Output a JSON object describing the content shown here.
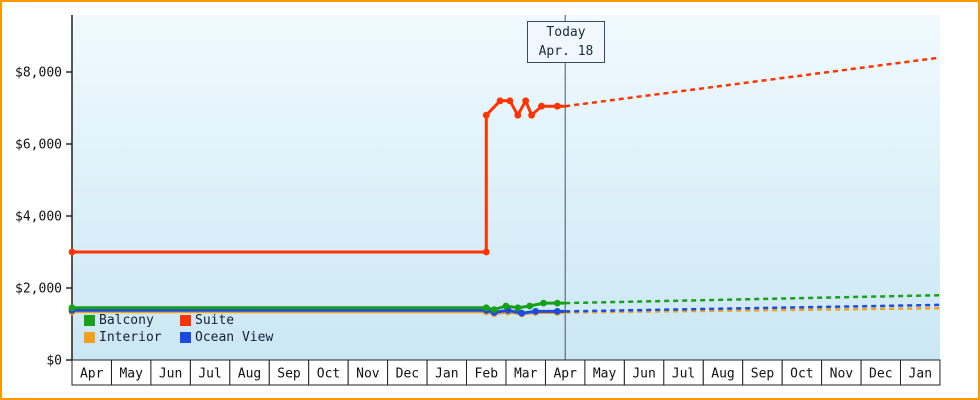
{
  "chart_data": {
    "type": "line",
    "today": {
      "x": 12.5,
      "label_line1": "Today",
      "label_line2": "Apr. 18"
    },
    "y_axis": {
      "ticks": [
        {
          "label": "$0",
          "value": 0
        },
        {
          "label": "$2,000",
          "value": 2000
        },
        {
          "label": "$4,000",
          "value": 4000
        },
        {
          "label": "$6,000",
          "value": 6000
        },
        {
          "label": "$8,000",
          "value": 8000
        }
      ],
      "range": [
        0,
        9600
      ]
    },
    "x_axis": {
      "months": [
        "Apr",
        "May",
        "Jun",
        "Jul",
        "Aug",
        "Sep",
        "Oct",
        "Nov",
        "Dec",
        "Jan",
        "Feb",
        "Mar",
        "Apr",
        "May",
        "Jun",
        "Jul",
        "Aug",
        "Sep",
        "Oct",
        "Nov",
        "Dec",
        "Jan"
      ]
    },
    "legend": [
      {
        "name": "Balcony",
        "color": "#18a018"
      },
      {
        "name": "Suite",
        "color": "#ff3300"
      },
      {
        "name": "Interior",
        "color": "#f0a11e"
      },
      {
        "name": "Ocean View",
        "color": "#1c4be0"
      }
    ],
    "colors": {
      "frame_border": "#ff9900",
      "plot_top": "#f0fafe",
      "plot_bottom": "#cbe7f4",
      "today_line": "#445566",
      "axis": "#222222"
    },
    "series": [
      {
        "name": "Interior",
        "history": [
          [
            0,
            1340
          ],
          [
            10.5,
            1340
          ],
          [
            10.7,
            1290
          ],
          [
            11.05,
            1330
          ],
          [
            11.4,
            1280
          ],
          [
            11.75,
            1320
          ],
          [
            12.5,
            1320
          ]
        ],
        "markers": [
          [
            0,
            1340
          ],
          [
            10.5,
            1340
          ],
          [
            10.7,
            1290
          ],
          [
            11.05,
            1330
          ],
          [
            11.4,
            1280
          ],
          [
            11.75,
            1320
          ],
          [
            12.3,
            1320
          ]
        ],
        "forecast": [
          [
            12.5,
            1320
          ],
          [
            22,
            1440
          ]
        ]
      },
      {
        "name": "Ocean View",
        "history": [
          [
            0,
            1380
          ],
          [
            10.5,
            1380
          ],
          [
            10.7,
            1320
          ],
          [
            11.05,
            1380
          ],
          [
            11.4,
            1300
          ],
          [
            11.75,
            1350
          ],
          [
            12.5,
            1350
          ]
        ],
        "markers": [
          [
            0,
            1380
          ],
          [
            10.5,
            1380
          ],
          [
            10.7,
            1320
          ],
          [
            11.05,
            1380
          ],
          [
            11.4,
            1300
          ],
          [
            11.75,
            1350
          ],
          [
            12.3,
            1350
          ]
        ],
        "forecast": [
          [
            12.5,
            1350
          ],
          [
            22,
            1530
          ]
        ]
      },
      {
        "name": "Balcony",
        "history": [
          [
            0,
            1450
          ],
          [
            10.5,
            1450
          ],
          [
            10.7,
            1400
          ],
          [
            11.0,
            1500
          ],
          [
            11.3,
            1450
          ],
          [
            11.6,
            1500
          ],
          [
            11.95,
            1580
          ],
          [
            12.5,
            1580
          ]
        ],
        "markers": [
          [
            0,
            1450
          ],
          [
            10.5,
            1450
          ],
          [
            10.7,
            1400
          ],
          [
            11.0,
            1500
          ],
          [
            11.3,
            1450
          ],
          [
            11.6,
            1500
          ],
          [
            11.95,
            1580
          ],
          [
            12.3,
            1580
          ]
        ],
        "forecast": [
          [
            12.5,
            1580
          ],
          [
            22,
            1800
          ]
        ]
      },
      {
        "name": "Suite",
        "history": [
          [
            0,
            3000
          ],
          [
            10.5,
            3000
          ],
          [
            10.5,
            6800
          ],
          [
            10.85,
            7200
          ],
          [
            11.1,
            7200
          ],
          [
            11.3,
            6800
          ],
          [
            11.5,
            7200
          ],
          [
            11.65,
            6800
          ],
          [
            11.9,
            7050
          ],
          [
            12.5,
            7050
          ]
        ],
        "markers": [
          [
            0,
            3000
          ],
          [
            10.5,
            3000
          ],
          [
            10.5,
            6800
          ],
          [
            10.85,
            7200
          ],
          [
            11.1,
            7200
          ],
          [
            11.3,
            6800
          ],
          [
            11.5,
            7200
          ],
          [
            11.65,
            6800
          ],
          [
            11.9,
            7050
          ],
          [
            12.3,
            7050
          ]
        ],
        "forecast": [
          [
            12.5,
            7050
          ],
          [
            22,
            8400
          ]
        ]
      }
    ]
  }
}
